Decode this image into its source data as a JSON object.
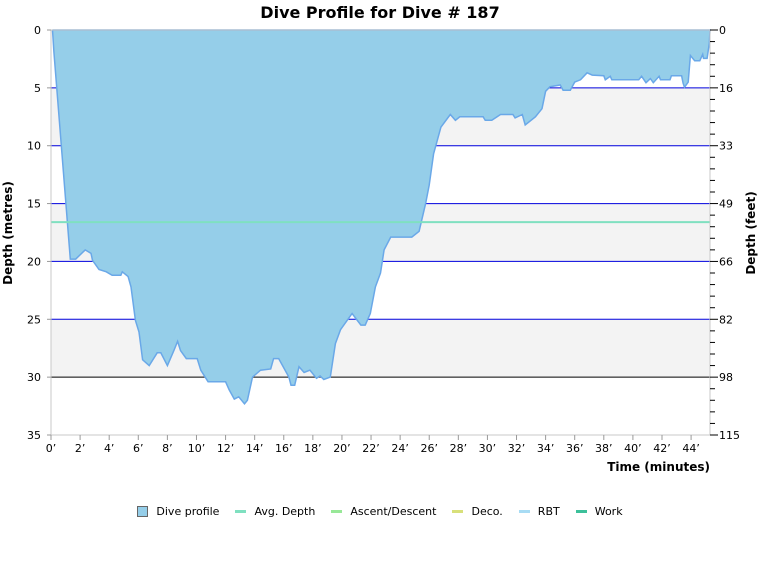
{
  "chart_data": {
    "type": "area",
    "title": "Dive Profile for Dive # 187",
    "xlabel": "Time (minutes)",
    "ylabel": "Depth (metres)",
    "ylabel_right": "Depth (feet)",
    "xlim": [
      0,
      45.3
    ],
    "ylim": [
      35,
      0
    ],
    "x_ticks": [
      "0’",
      "2’",
      "4’",
      "6’",
      "8’",
      "10’",
      "12’",
      "14’",
      "16’",
      "18’",
      "20’",
      "22’",
      "24’",
      "26’",
      "28’",
      "30’",
      "32’",
      "34’",
      "36’",
      "38’",
      "40’",
      "42’",
      "44’"
    ],
    "y_ticks": [
      "0",
      "5",
      "10",
      "15",
      "20",
      "25",
      "30",
      "35"
    ],
    "y_right_ticks": [
      "0",
      "16",
      "33",
      "49",
      "66",
      "82",
      "98",
      "115"
    ],
    "grid": true,
    "avg_depth": 16.6,
    "series": [
      {
        "name": "Dive profile",
        "color": "#95CEE9",
        "line_color": "#6AA8E8",
        "points": [
          [
            0.1,
            0
          ],
          [
            0.2,
            1.9
          ],
          [
            1.33,
            19.8
          ],
          [
            1.7,
            19.8
          ],
          [
            2.35,
            19.0
          ],
          [
            2.75,
            19.3
          ],
          [
            2.85,
            19.9
          ],
          [
            3.3,
            20.7
          ],
          [
            3.8,
            20.9
          ],
          [
            4.2,
            21.2
          ],
          [
            4.8,
            21.2
          ],
          [
            4.9,
            20.9
          ],
          [
            5.3,
            21.3
          ],
          [
            5.5,
            22.2
          ],
          [
            5.8,
            25.1
          ],
          [
            6.05,
            26.1
          ],
          [
            6.3,
            28.5
          ],
          [
            6.75,
            29.0
          ],
          [
            7.3,
            27.9
          ],
          [
            7.55,
            27.9
          ],
          [
            8.0,
            29.0
          ],
          [
            8.45,
            27.7
          ],
          [
            8.7,
            26.9
          ],
          [
            8.9,
            27.7
          ],
          [
            9.3,
            28.4
          ],
          [
            10.05,
            28.4
          ],
          [
            10.3,
            29.4
          ],
          [
            10.8,
            30.4
          ],
          [
            12.0,
            30.4
          ],
          [
            12.25,
            31.1
          ],
          [
            12.6,
            31.9
          ],
          [
            12.9,
            31.7
          ],
          [
            13.3,
            32.3
          ],
          [
            13.5,
            32.0
          ],
          [
            13.85,
            30.0
          ],
          [
            14.4,
            29.4
          ],
          [
            15.1,
            29.3
          ],
          [
            15.3,
            28.4
          ],
          [
            15.65,
            28.4
          ],
          [
            16.35,
            30.0
          ],
          [
            16.5,
            30.7
          ],
          [
            16.75,
            30.7
          ],
          [
            17.05,
            29.1
          ],
          [
            17.4,
            29.6
          ],
          [
            17.8,
            29.4
          ],
          [
            18.25,
            30.1
          ],
          [
            18.5,
            29.9
          ],
          [
            18.75,
            30.2
          ],
          [
            19.2,
            30.0
          ],
          [
            19.55,
            27.1
          ],
          [
            19.9,
            25.9
          ],
          [
            20.7,
            24.5
          ],
          [
            21.3,
            25.5
          ],
          [
            21.6,
            25.5
          ],
          [
            21.95,
            24.5
          ],
          [
            22.3,
            22.2
          ],
          [
            22.65,
            21.0
          ],
          [
            22.9,
            19.0
          ],
          [
            23.35,
            17.9
          ],
          [
            24.8,
            17.9
          ],
          [
            25.3,
            17.4
          ],
          [
            25.75,
            15.0
          ],
          [
            26.0,
            13.4
          ],
          [
            26.3,
            10.7
          ],
          [
            26.8,
            8.4
          ],
          [
            27.45,
            7.3
          ],
          [
            27.8,
            7.8
          ],
          [
            28.1,
            7.5
          ],
          [
            29.7,
            7.5
          ],
          [
            29.85,
            7.8
          ],
          [
            30.3,
            7.8
          ],
          [
            30.9,
            7.3
          ],
          [
            31.75,
            7.3
          ],
          [
            31.9,
            7.6
          ],
          [
            32.4,
            7.3
          ],
          [
            32.6,
            8.2
          ],
          [
            33.3,
            7.5
          ],
          [
            33.75,
            6.8
          ],
          [
            34.0,
            5.3
          ],
          [
            34.3,
            4.9
          ],
          [
            35.0,
            4.75
          ],
          [
            35.2,
            5.2
          ],
          [
            35.7,
            5.2
          ],
          [
            36.0,
            4.5
          ],
          [
            36.4,
            4.3
          ],
          [
            36.85,
            3.7
          ],
          [
            37.2,
            3.9
          ],
          [
            38.0,
            3.95
          ],
          [
            38.1,
            4.3
          ],
          [
            38.45,
            4.0
          ],
          [
            38.55,
            4.3
          ],
          [
            40.4,
            4.3
          ],
          [
            40.6,
            4.0
          ],
          [
            40.9,
            4.55
          ],
          [
            41.2,
            4.2
          ],
          [
            41.4,
            4.55
          ],
          [
            41.8,
            4.0
          ],
          [
            41.9,
            4.3
          ],
          [
            42.55,
            4.3
          ],
          [
            42.65,
            3.95
          ],
          [
            43.35,
            3.95
          ],
          [
            43.45,
            4.6
          ],
          [
            43.55,
            4.95
          ],
          [
            43.8,
            4.5
          ],
          [
            43.95,
            2.2
          ],
          [
            44.25,
            2.65
          ],
          [
            44.6,
            2.65
          ],
          [
            44.8,
            2.1
          ],
          [
            44.85,
            2.45
          ],
          [
            45.1,
            2.45
          ],
          [
            45.25,
            1.15
          ],
          [
            45.3,
            0
          ]
        ]
      }
    ],
    "legend": [
      {
        "name": "Dive profile",
        "color": "#95CEE9",
        "kind": "box"
      },
      {
        "name": "Avg. Depth",
        "color": "#7FE0C0",
        "kind": "line"
      },
      {
        "name": "Ascent/Descent",
        "color": "#98E898",
        "kind": "line"
      },
      {
        "name": "Deco.",
        "color": "#D8E07A",
        "kind": "line"
      },
      {
        "name": "RBT",
        "color": "#A8DCF4",
        "kind": "line"
      },
      {
        "name": "Work",
        "color": "#3CC09A",
        "kind": "line"
      }
    ],
    "legend_position": "bottom"
  }
}
